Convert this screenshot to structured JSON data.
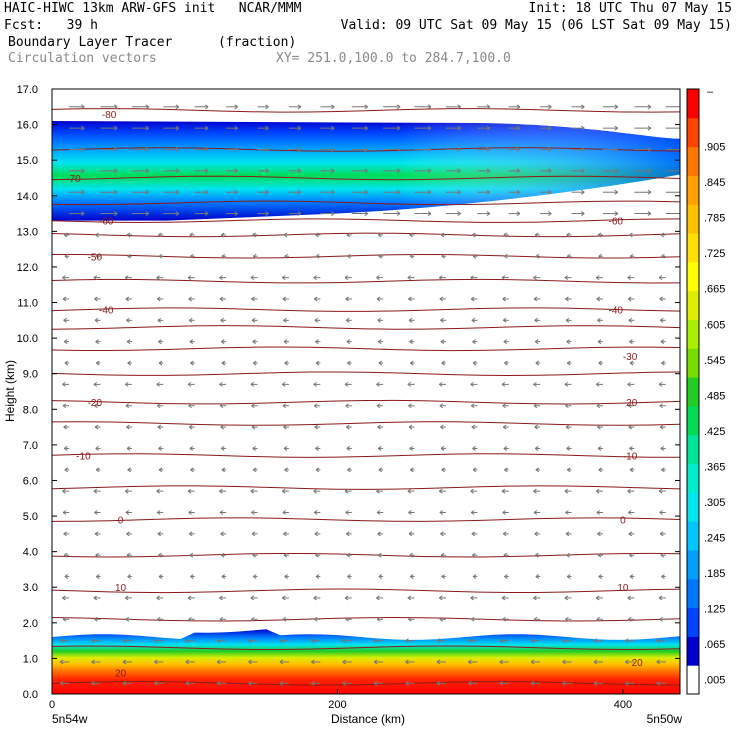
{
  "header": {
    "line1_left": "HAIC-HIWC 13km ARW-GFS init   NCAR/MMM",
    "line1_right": "Init: 18 UTC Thu 07 May 15",
    "line2_left": "Fcst:   39 h",
    "line2_right": "Valid: 09 UTC Sat 09 May 15 (06 LST Sat 09 May 15)",
    "line3_left": "Boundary Layer Tracer",
    "line3_units": "(fraction)",
    "line4_left": "Circulation vectors",
    "line4_xy": "XY= 251.0,100.0 to 284.7,100.0"
  },
  "chart_data": {
    "type": "heatmap",
    "xlabel": "Distance (km)",
    "ylabel": "Height (km)",
    "xlim": [
      0,
      440
    ],
    "ylim": [
      0,
      17
    ],
    "x_ticks": [
      0,
      200,
      400
    ],
    "x_tick_labels": [
      "0",
      "200",
      "400"
    ],
    "y_ticks": [
      0,
      1,
      2,
      3,
      4,
      5,
      6,
      7,
      8,
      9,
      10,
      11,
      12,
      13,
      14,
      15,
      16,
      17
    ],
    "y_tick_labels": [
      "0.0",
      "1.0",
      "2.0",
      "3.0",
      "4.0",
      "5.0",
      "6.0",
      "7.0",
      "8.0",
      "9.0",
      "10.0",
      "11.0",
      "12.0",
      "13.0",
      "14.0",
      "15.0",
      "16.0",
      "17.0"
    ],
    "x_endpoint_labels": {
      "left": "5n54w",
      "right": "5n50w"
    },
    "colorbar": {
      "colors": [
        "#ffffff",
        "#0000cc",
        "#0044ff",
        "#0077ff",
        "#00a0ff",
        "#00c8ff",
        "#00e5ee",
        "#00eecc",
        "#00e699",
        "#00dd55",
        "#22cc22",
        "#77dd00",
        "#aaee00",
        "#ddee00",
        "#ffff00",
        "#ffe000",
        "#ffc000",
        "#ffa000",
        "#ff7700",
        "#ff4400",
        "#ff0000"
      ],
      "labels": [
        ".005",
        ".065",
        ".125",
        ".185",
        ".245",
        ".305",
        ".365",
        ".425",
        ".485",
        ".545",
        ".605",
        ".665",
        ".725",
        ".785",
        ".845",
        ".905"
      ],
      "top_label": "–"
    },
    "tracer_layers": [
      {
        "name": "boundary layer",
        "y_bottom": 0.0,
        "y_top": 1.6,
        "peak_fraction": 1.0
      },
      {
        "name": "outflow plume",
        "y_bottom": 13.3,
        "y_top": 16.1,
        "peak_fraction": 0.4
      }
    ],
    "temperature_contour_labels": [
      {
        "x": 40,
        "y": 16.3,
        "text": "-80"
      },
      {
        "x": 15,
        "y": 14.5,
        "text": "-70"
      },
      {
        "x": 38,
        "y": 13.3,
        "text": "-60"
      },
      {
        "x": 395,
        "y": 13.3,
        "text": "-60"
      },
      {
        "x": 30,
        "y": 12.3,
        "text": "-50"
      },
      {
        "x": 38,
        "y": 10.8,
        "text": "-40"
      },
      {
        "x": 395,
        "y": 10.8,
        "text": "-40"
      },
      {
        "x": 405,
        "y": 9.5,
        "text": "-30"
      },
      {
        "x": 30,
        "y": 8.2,
        "text": "-20"
      },
      {
        "x": 405,
        "y": 8.2,
        "text": "-20"
      },
      {
        "x": 22,
        "y": 6.7,
        "text": "-10"
      },
      {
        "x": 405,
        "y": 6.7,
        "text": "-10"
      },
      {
        "x": 48,
        "y": 4.9,
        "text": "0"
      },
      {
        "x": 400,
        "y": 4.9,
        "text": "0"
      },
      {
        "x": 48,
        "y": 3.0,
        "text": "10"
      },
      {
        "x": 400,
        "y": 3.0,
        "text": "10"
      },
      {
        "x": 48,
        "y": 0.6,
        "text": "20"
      },
      {
        "x": 410,
        "y": 0.9,
        "text": "20"
      }
    ],
    "grid": false,
    "legend": "colorbar-right"
  }
}
